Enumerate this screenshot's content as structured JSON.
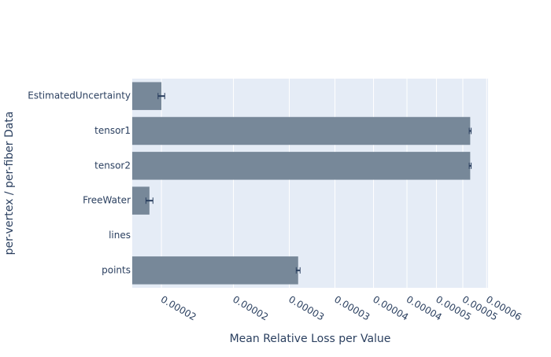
{
  "chart_data": {
    "type": "barh",
    "categories": [
      "EstimatedUncertainty",
      "tensor1",
      "tensor2",
      "FreeWater",
      "lines",
      "points"
    ],
    "values": [
      1.5e-05,
      5.15e-05,
      5.15e-05,
      1.43e-05,
      null,
      2.59e-05
    ],
    "errors": [
      2e-07,
      2e-07,
      2e-07,
      2e-07,
      null,
      2e-07
    ],
    "color": "#778899",
    "error_color": "#2a3f5f",
    "x_label": "Mean Relative Loss per Value",
    "y_label": "per-vertex / per-fiber Data",
    "xscale": "log",
    "xlim": [
      1.335e-05,
      5.53e-05
    ],
    "xticks": [
      {
        "value": 1.5e-05,
        "label": "0.00002"
      },
      2e-05,
      {
        "value": 2.5e-05,
        "label": "0.00003"
      },
      3e-05,
      {
        "value": 3.5e-05,
        "label": "0.00004"
      },
      4e-05,
      {
        "value": 4.5e-05,
        "label": "0.00005"
      },
      5e-05,
      {
        "value": 5.5e-05,
        "label": "0.00006"
      }
    ],
    "grid": true
  }
}
